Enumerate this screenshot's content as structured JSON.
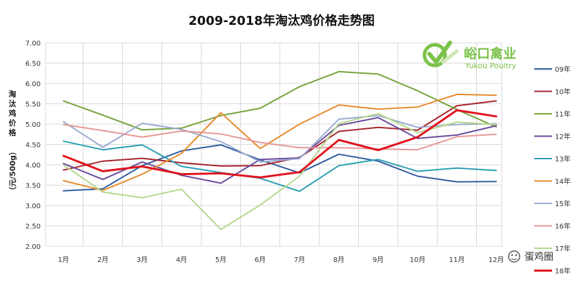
{
  "chart_data": {
    "type": "line",
    "title": "2009-2018年淘汰鸡价格走势图",
    "ylabel": "淘汰鸡价格（元/500g）",
    "xlabel": "",
    "ylim": [
      2.0,
      7.0
    ],
    "yticks": [
      "7.00",
      "6.50",
      "6.00",
      "5.50",
      "5.00",
      "4.50",
      "4.00",
      "3.50",
      "3.00",
      "2.50",
      "2.00"
    ],
    "ytick_values": [
      7.0,
      6.5,
      6.0,
      5.5,
      5.0,
      4.5,
      4.0,
      3.5,
      3.0,
      2.5,
      2.0
    ],
    "categories": [
      "1月",
      "2月",
      "3月",
      "4月",
      "5月",
      "6月",
      "7月",
      "8月",
      "9月",
      "10月",
      "11月",
      "12月"
    ],
    "grid": true,
    "legend_position": "right",
    "series": [
      {
        "name": "09年",
        "color": "#2e5d9e",
        "width": 2,
        "values": [
          3.36,
          3.41,
          3.98,
          4.34,
          4.49,
          4.12,
          3.8,
          4.26,
          4.09,
          3.72,
          3.58,
          3.59
        ]
      },
      {
        "name": "10年",
        "color": "#a8242d",
        "width": 2,
        "values": [
          3.87,
          4.09,
          4.16,
          4.05,
          3.97,
          3.98,
          4.18,
          4.82,
          4.92,
          4.85,
          5.45,
          5.57
        ]
      },
      {
        "name": "11年",
        "color": "#77a33c",
        "width": 2,
        "values": [
          5.57,
          5.22,
          4.86,
          4.9,
          5.21,
          5.39,
          5.92,
          6.29,
          6.23,
          5.82,
          5.36,
          4.93
        ]
      },
      {
        "name": "12年",
        "color": "#6a4a9c",
        "width": 2,
        "values": [
          4.03,
          3.64,
          4.07,
          3.74,
          3.55,
          4.13,
          4.17,
          4.97,
          5.16,
          4.65,
          4.73,
          4.96
        ]
      },
      {
        "name": "13年",
        "color": "#2b9eb3",
        "width": 2,
        "values": [
          4.58,
          4.37,
          4.49,
          3.96,
          3.81,
          3.67,
          3.35,
          3.98,
          4.13,
          3.84,
          3.92,
          3.86
        ]
      },
      {
        "name": "14年",
        "color": "#e88b2e",
        "width": 2,
        "values": [
          3.61,
          3.37,
          3.77,
          4.28,
          5.28,
          4.4,
          5.0,
          5.47,
          5.37,
          5.42,
          5.73,
          5.71
        ]
      },
      {
        "name": "15年",
        "color": "#9aabd2",
        "width": 2,
        "values": [
          5.06,
          4.43,
          5.02,
          4.87,
          4.57,
          4.07,
          4.15,
          5.12,
          5.21,
          4.92,
          4.99,
          5.01
        ]
      },
      {
        "name": "16年",
        "color": "#e79797",
        "width": 2,
        "values": [
          4.99,
          4.84,
          4.68,
          4.83,
          4.76,
          4.55,
          4.42,
          4.42,
          4.39,
          4.37,
          4.69,
          4.75
        ]
      },
      {
        "name": "17年",
        "color": "#b5d88d",
        "width": 2,
        "values": [
          4.0,
          3.33,
          3.19,
          3.4,
          2.41,
          3.01,
          3.72,
          5.01,
          5.26,
          4.79,
          5.05,
          4.99
        ]
      },
      {
        "name": "18年",
        "color": "#e0141e",
        "width": 3,
        "values": [
          4.22,
          3.84,
          3.96,
          3.77,
          3.79,
          3.69,
          3.82,
          4.61,
          4.36,
          4.68,
          5.34,
          5.19
        ]
      }
    ]
  },
  "brand": {
    "name_cn": "峪口禽业",
    "name_en": "Yukou Poultry"
  },
  "watermark": {
    "text": "蛋鸡圈"
  }
}
